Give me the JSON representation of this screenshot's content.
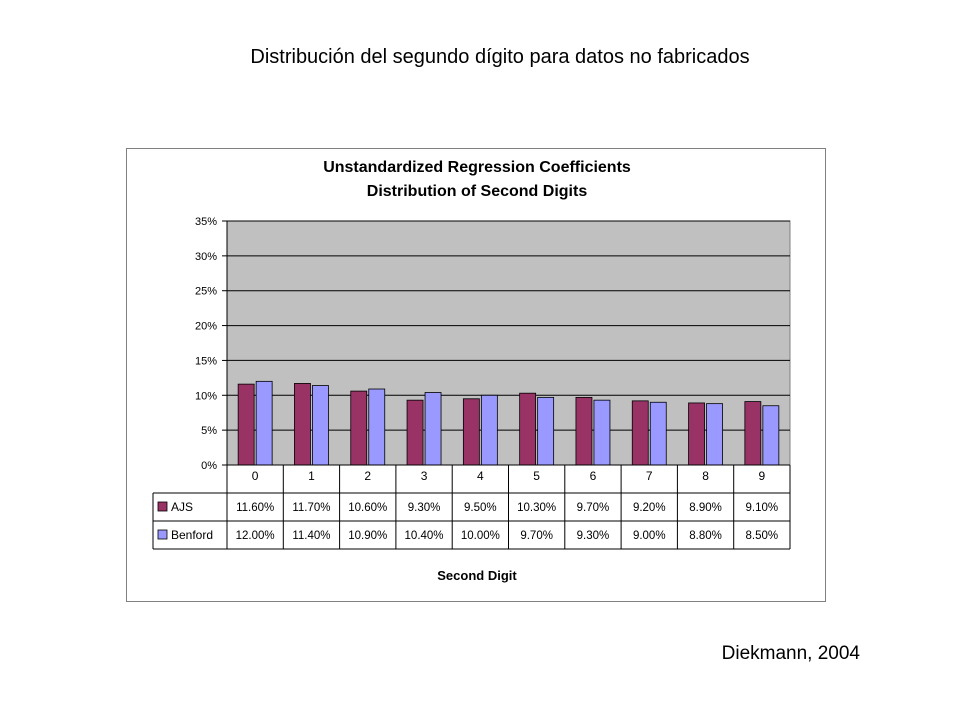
{
  "slide": {
    "title": "Distribución del segundo dígito para datos no fabricados",
    "citation": "Diekmann, 2004"
  },
  "chart_data": {
    "type": "bar",
    "title_line1": "Unstandardized Regression Coefficients",
    "title_line2": "Distribution of Second Digits",
    "xlabel": "Second Digit",
    "ylabel": "",
    "categories": [
      "0",
      "1",
      "2",
      "3",
      "4",
      "5",
      "6",
      "7",
      "8",
      "9"
    ],
    "y_ticks": [
      "0%",
      "5%",
      "10%",
      "15%",
      "20%",
      "25%",
      "30%",
      "35%"
    ],
    "ylim": [
      0,
      35
    ],
    "grid": true,
    "legend": "data-table",
    "series": [
      {
        "name": "AJS",
        "color": "#993366",
        "values": [
          11.6,
          11.7,
          10.6,
          9.3,
          9.5,
          10.3,
          9.7,
          9.2,
          8.9,
          9.1
        ],
        "labels": [
          "11.60%",
          "11.70%",
          "10.60%",
          "9.30%",
          "9.50%",
          "10.30%",
          "9.70%",
          "9.20%",
          "8.90%",
          "9.10%"
        ]
      },
      {
        "name": "Benford",
        "color": "#9999ff",
        "values": [
          12.0,
          11.4,
          10.9,
          10.4,
          10.0,
          9.7,
          9.3,
          9.0,
          8.8,
          8.5
        ],
        "labels": [
          "12.00%",
          "11.40%",
          "10.90%",
          "10.40%",
          "10.00%",
          "9.70%",
          "9.30%",
          "9.00%",
          "8.80%",
          "8.50%"
        ]
      }
    ]
  }
}
